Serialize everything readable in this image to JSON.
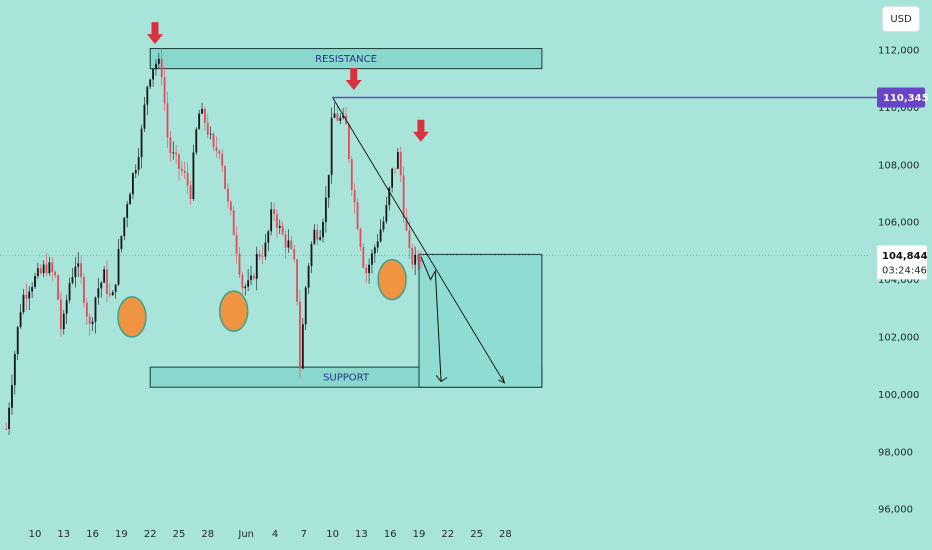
{
  "currency": "USD",
  "chart_data": {
    "type": "candlestick",
    "title": "",
    "xlabel": "",
    "ylabel": "",
    "ylim": [
      95200,
      113400
    ],
    "y_ticks": [
      {
        "value": 96000,
        "label": "96,000"
      },
      {
        "value": 98000,
        "label": "98,000"
      },
      {
        "value": 100000,
        "label": "100,000"
      },
      {
        "value": 102000,
        "label": "102,000"
      },
      {
        "value": 104000,
        "label": "104,000"
      },
      {
        "value": 106000,
        "label": "106,000"
      },
      {
        "value": 108000,
        "label": "108,000"
      },
      {
        "value": 110000,
        "label": "110,000"
      },
      {
        "value": 112000,
        "label": "112,000"
      }
    ],
    "x_ticks": [
      {
        "day": 10,
        "label": "10"
      },
      {
        "day": 13,
        "label": "13"
      },
      {
        "day": 16,
        "label": "16"
      },
      {
        "day": 19,
        "label": "19"
      },
      {
        "day": 22,
        "label": "22"
      },
      {
        "day": 25,
        "label": "25"
      },
      {
        "day": 28,
        "label": "28"
      },
      {
        "day": 32,
        "label": "Jun"
      },
      {
        "day": 35,
        "label": "4"
      },
      {
        "day": 38,
        "label": "7"
      },
      {
        "day": 41,
        "label": "10"
      },
      {
        "day": 44,
        "label": "13"
      },
      {
        "day": 47,
        "label": "16"
      },
      {
        "day": 50,
        "label": "19"
      },
      {
        "day": 53,
        "label": "22"
      },
      {
        "day": 56,
        "label": "25"
      },
      {
        "day": 59,
        "label": "28"
      }
    ],
    "price_path": [
      [
        7.0,
        98800
      ],
      [
        7.8,
        101200
      ],
      [
        8.6,
        103300
      ],
      [
        9.5,
        103900
      ],
      [
        10.4,
        104100
      ],
      [
        11.2,
        104500
      ],
      [
        12.2,
        104000
      ],
      [
        12.8,
        102000
      ],
      [
        13.5,
        103800
      ],
      [
        14.2,
        104600
      ],
      [
        15.0,
        103700
      ],
      [
        15.7,
        102300
      ],
      [
        16.4,
        103600
      ],
      [
        17.2,
        104100
      ],
      [
        18.0,
        103100
      ],
      [
        18.8,
        105100
      ],
      [
        19.6,
        106800
      ],
      [
        20.4,
        107900
      ],
      [
        21.1,
        109100
      ],
      [
        21.8,
        111100
      ],
      [
        22.5,
        111600
      ],
      [
        23.2,
        111300
      ],
      [
        23.9,
        108600
      ],
      [
        24.6,
        108100
      ],
      [
        25.4,
        107700
      ],
      [
        26.2,
        107100
      ],
      [
        27.0,
        109800
      ],
      [
        27.8,
        109500
      ],
      [
        28.6,
        108400
      ],
      [
        29.3,
        108700
      ],
      [
        30.0,
        106700
      ],
      [
        30.8,
        105600
      ],
      [
        31.6,
        103800
      ],
      [
        32.4,
        103700
      ],
      [
        33.2,
        104900
      ],
      [
        34.0,
        105100
      ],
      [
        34.8,
        106500
      ],
      [
        35.6,
        105600
      ],
      [
        36.4,
        105200
      ],
      [
        37.2,
        104200
      ],
      [
        37.6,
        101000
      ],
      [
        38.3,
        104200
      ],
      [
        39.0,
        105600
      ],
      [
        39.7,
        105800
      ],
      [
        40.4,
        106900
      ],
      [
        41.0,
        109800
      ],
      [
        41.7,
        109600
      ],
      [
        42.4,
        109300
      ],
      [
        43.1,
        107100
      ],
      [
        43.8,
        105600
      ],
      [
        44.4,
        104200
      ],
      [
        45.1,
        104800
      ],
      [
        45.8,
        105600
      ],
      [
        46.5,
        106200
      ],
      [
        47.2,
        107700
      ],
      [
        47.9,
        108400
      ],
      [
        48.5,
        106100
      ],
      [
        49.0,
        104800
      ],
      [
        49.6,
        104600
      ],
      [
        50.2,
        104844
      ]
    ],
    "series": [
      {
        "name": "RESISTANCE",
        "type": "zone",
        "low": 111350,
        "high": 112050,
        "day_start": 22.0,
        "day_end": 62.8
      },
      {
        "name": "SUPPORT",
        "type": "zone",
        "low": 100250,
        "high": 100950,
        "day_start": 22.0,
        "day_end": 62.8
      }
    ],
    "annotations": {
      "resistance_label": "RESISTANCE",
      "support_label": "SUPPORT",
      "level_value": 110345,
      "level_label": "110,345",
      "level_day_start": 41.0,
      "last_price_label": "104,844",
      "countdown_label": "03:24:46",
      "last_price_value": 104844,
      "trendline": [
        [
          41.0,
          110345
        ],
        [
          58.9,
          100400
        ]
      ],
      "projection_box": {
        "day_start": 50.0,
        "day_end": 62.8,
        "low": 100250,
        "high": 104880
      },
      "projection_path": [
        [
          50.2,
          104800
        ],
        [
          51.2,
          104000
        ],
        [
          51.7,
          104300
        ],
        [
          52.3,
          100450
        ]
      ],
      "down_markers": [
        [
          22.5,
          112100
        ],
        [
          43.2,
          110500
        ],
        [
          50.2,
          108700
        ]
      ],
      "swing_lows": [
        [
          20.1,
          102700
        ],
        [
          30.7,
          102900
        ],
        [
          47.2,
          104000
        ]
      ],
      "colors": {
        "up": "#121418",
        "down": "#e8485a",
        "zone_fill": "#88d8cd",
        "zone_border": "#173c38",
        "level": "#6a44c8",
        "marker": "#d9323e",
        "swing": "#f09442"
      }
    }
  }
}
